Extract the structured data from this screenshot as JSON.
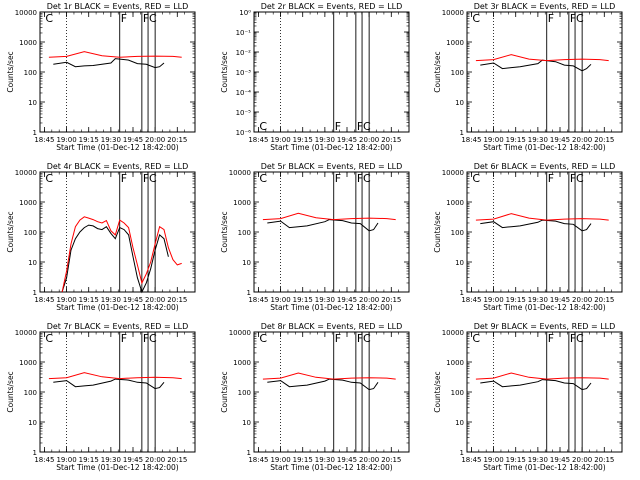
{
  "chart_data": [
    {
      "title": "Det 1r BLACK = Events, RED = LLD",
      "type": "line",
      "ylabel": "Counts/sec",
      "xlabel": "Start Time (01-Dec-12 18:42:00)",
      "xticks": [
        "18:45",
        "19:00",
        "19:15",
        "19:30",
        "19:45",
        "20:00",
        "20:15"
      ],
      "yscale": "log",
      "ylim": [
        1,
        10000
      ],
      "yticks": [
        "1",
        "10",
        "100",
        "1000",
        "10000"
      ],
      "flags": [
        "C",
        "F",
        "F",
        "C"
      ],
      "series": [
        {
          "name": "Events",
          "color": "#000000",
          "x": [
            18.85,
            19.0,
            19.1,
            19.2,
            19.3,
            19.5,
            19.55,
            19.7,
            19.8,
            19.9,
            20.0,
            20.05,
            20.1
          ],
          "y": [
            180,
            210,
            150,
            160,
            165,
            200,
            280,
            250,
            190,
            180,
            140,
            150,
            200
          ]
        },
        {
          "name": "LLD",
          "color": "#ff0000",
          "x": [
            18.8,
            19.0,
            19.2,
            19.4,
            19.6,
            19.8,
            20.0,
            20.2,
            20.3
          ],
          "y": [
            310,
            330,
            480,
            350,
            310,
            330,
            340,
            330,
            310
          ]
        }
      ]
    },
    {
      "title": "Det 2r BLACK = Events, RED = LLD",
      "type": "line",
      "ylabel": "Counts/sec",
      "xlabel": "Start Time (01-Dec-12 18:42:00)",
      "xticks": [
        "18:45",
        "19:00",
        "19:15",
        "19:30",
        "19:45",
        "20:00",
        "20:15"
      ],
      "yscale": "log",
      "ylim": [
        1e-06,
        1
      ],
      "yticks": [
        "10⁻⁶",
        "10⁻⁵",
        "10⁻⁴",
        "10⁻³",
        "10⁻²",
        "10⁻¹",
        "10⁰"
      ],
      "flags": [
        "C",
        "F",
        "F",
        "C"
      ],
      "series": []
    },
    {
      "title": "Det 3r BLACK = Events, RED = LLD",
      "type": "line",
      "ylabel": "Counts/sec",
      "xlabel": "Start Time (01-Dec-12 18:42:00)",
      "xticks": [
        "18:45",
        "19:00",
        "19:15",
        "19:30",
        "19:45",
        "20:00",
        "20:15"
      ],
      "yscale": "log",
      "ylim": [
        1,
        10000
      ],
      "yticks": [
        "1",
        "10",
        "100",
        "1000",
        "10000"
      ],
      "flags": [
        "C",
        "F",
        "F",
        "C"
      ],
      "series": [
        {
          "name": "Events",
          "color": "#000000",
          "x": [
            18.85,
            19.0,
            19.1,
            19.2,
            19.3,
            19.5,
            19.55,
            19.7,
            19.8,
            19.9,
            20.0,
            20.05,
            20.1
          ],
          "y": [
            170,
            200,
            130,
            140,
            150,
            190,
            250,
            220,
            170,
            160,
            110,
            130,
            180
          ]
        },
        {
          "name": "LLD",
          "color": "#ff0000",
          "x": [
            18.8,
            19.0,
            19.2,
            19.4,
            19.6,
            19.8,
            20.0,
            20.2,
            20.3
          ],
          "y": [
            240,
            260,
            380,
            270,
            240,
            260,
            270,
            260,
            240
          ]
        }
      ]
    },
    {
      "title": "Det 4r BLACK = Events, RED = LLD",
      "type": "line",
      "ylabel": "Counts/sec",
      "xlabel": "Start Time (01-Dec-12 18:42:00)",
      "xticks": [
        "18:45",
        "19:00",
        "19:15",
        "19:30",
        "19:45",
        "20:00",
        "20:15"
      ],
      "yscale": "log",
      "ylim": [
        1,
        10000
      ],
      "yticks": [
        "1",
        "10",
        "100",
        "1000",
        "10000"
      ],
      "flags": [
        "C",
        "F",
        "F",
        "C"
      ],
      "series": [
        {
          "name": "Events",
          "color": "#000000",
          "x": [
            18.95,
            19.0,
            19.05,
            19.1,
            19.15,
            19.2,
            19.25,
            19.3,
            19.35,
            19.4,
            19.45,
            19.5,
            19.55,
            19.6,
            19.65,
            19.7,
            19.75,
            19.8,
            19.85,
            19.9,
            19.95,
            20.0,
            20.05,
            20.1,
            20.15
          ],
          "y": [
            1,
            3,
            25,
            60,
            100,
            140,
            170,
            160,
            130,
            120,
            150,
            90,
            60,
            140,
            120,
            80,
            15,
            3,
            1,
            2,
            6,
            25,
            80,
            60,
            15
          ]
        },
        {
          "name": "LLD",
          "color": "#ff0000",
          "x": [
            18.95,
            19.0,
            19.05,
            19.1,
            19.15,
            19.2,
            19.25,
            19.3,
            19.35,
            19.4,
            19.45,
            19.5,
            19.55,
            19.6,
            19.65,
            19.7,
            19.75,
            19.8,
            19.85,
            19.9,
            19.95,
            20.0,
            20.05,
            20.1,
            20.15,
            20.2,
            20.25,
            20.3
          ],
          "y": [
            1,
            5,
            40,
            150,
            250,
            320,
            290,
            260,
            220,
            200,
            240,
            110,
            80,
            250,
            200,
            140,
            30,
            8,
            2,
            4,
            10,
            40,
            150,
            120,
            30,
            12,
            8,
            9
          ]
        }
      ]
    },
    {
      "title": "Det 5r BLACK = Events, RED = LLD",
      "type": "line",
      "ylabel": "Counts/sec",
      "xlabel": "Start Time (01-Dec-12 18:42:00)",
      "xticks": [
        "18:45",
        "19:00",
        "19:15",
        "19:30",
        "19:45",
        "20:00",
        "20:15"
      ],
      "yscale": "log",
      "ylim": [
        1,
        10000
      ],
      "yticks": [
        "1",
        "10",
        "100",
        "1000",
        "10000"
      ],
      "flags": [
        "C",
        "F",
        "F",
        "C"
      ],
      "series": [
        {
          "name": "Events",
          "color": "#000000",
          "x": [
            18.85,
            19.0,
            19.1,
            19.2,
            19.3,
            19.5,
            19.55,
            19.7,
            19.8,
            19.9,
            20.0,
            20.05,
            20.1
          ],
          "y": [
            200,
            230,
            140,
            150,
            160,
            220,
            260,
            240,
            200,
            190,
            110,
            120,
            200
          ]
        },
        {
          "name": "LLD",
          "color": "#ff0000",
          "x": [
            18.8,
            19.0,
            19.2,
            19.4,
            19.6,
            19.8,
            20.0,
            20.2,
            20.3
          ],
          "y": [
            260,
            280,
            420,
            300,
            260,
            280,
            290,
            280,
            260
          ]
        }
      ]
    },
    {
      "title": "Det 6r BLACK = Events, RED = LLD",
      "type": "line",
      "ylabel": "Counts/sec",
      "xlabel": "Start Time (01-Dec-12 18:42:00)",
      "xticks": [
        "18:45",
        "19:00",
        "19:15",
        "19:30",
        "19:45",
        "20:00",
        "20:15"
      ],
      "yscale": "log",
      "ylim": [
        1,
        10000
      ],
      "yticks": [
        "1",
        "10",
        "100",
        "1000",
        "10000"
      ],
      "flags": [
        "C",
        "F",
        "F",
        "C"
      ],
      "series": [
        {
          "name": "Events",
          "color": "#000000",
          "x": [
            18.85,
            19.0,
            19.1,
            19.2,
            19.3,
            19.5,
            19.55,
            19.7,
            19.8,
            19.9,
            20.0,
            20.05,
            20.1
          ],
          "y": [
            190,
            220,
            140,
            150,
            160,
            210,
            250,
            230,
            190,
            180,
            110,
            120,
            190
          ]
        },
        {
          "name": "LLD",
          "color": "#ff0000",
          "x": [
            18.8,
            19.0,
            19.2,
            19.4,
            19.6,
            19.8,
            20.0,
            20.2,
            20.3
          ],
          "y": [
            250,
            270,
            410,
            290,
            250,
            270,
            280,
            270,
            250
          ]
        }
      ]
    },
    {
      "title": "Det 7r BLACK = Events, RED = LLD",
      "type": "line",
      "ylabel": "Counts/sec",
      "xlabel": "Start Time (01-Dec-12 18:42:00)",
      "xticks": [
        "18:45",
        "19:00",
        "19:15",
        "19:30",
        "19:45",
        "20:00",
        "20:15"
      ],
      "yscale": "log",
      "ylim": [
        1,
        10000
      ],
      "yticks": [
        "1",
        "10",
        "100",
        "1000",
        "10000"
      ],
      "flags": [
        "C",
        "F",
        "F",
        "C"
      ],
      "series": [
        {
          "name": "Events",
          "color": "#000000",
          "x": [
            18.85,
            19.0,
            19.1,
            19.2,
            19.3,
            19.5,
            19.55,
            19.7,
            19.8,
            19.9,
            20.0,
            20.05,
            20.1
          ],
          "y": [
            210,
            240,
            150,
            160,
            170,
            230,
            270,
            250,
            210,
            200,
            130,
            140,
            210
          ]
        },
        {
          "name": "LLD",
          "color": "#ff0000",
          "x": [
            18.8,
            19.0,
            19.2,
            19.4,
            19.6,
            19.8,
            20.0,
            20.2,
            20.3
          ],
          "y": [
            280,
            300,
            440,
            320,
            280,
            300,
            310,
            300,
            280
          ]
        }
      ]
    },
    {
      "title": "Det 8r BLACK = Events, RED = LLD",
      "type": "line",
      "ylabel": "Counts/sec",
      "xlabel": "Start Time (01-Dec-12 18:42:00)",
      "xticks": [
        "18:45",
        "19:00",
        "19:15",
        "19:30",
        "19:45",
        "20:00",
        "20:15"
      ],
      "yscale": "log",
      "ylim": [
        1,
        10000
      ],
      "yticks": [
        "1",
        "10",
        "100",
        "1000",
        "10000"
      ],
      "flags": [
        "C",
        "F",
        "F",
        "C"
      ],
      "series": [
        {
          "name": "Events",
          "color": "#000000",
          "x": [
            18.85,
            19.0,
            19.1,
            19.2,
            19.3,
            19.5,
            19.55,
            19.7,
            19.8,
            19.9,
            20.0,
            20.05,
            20.1
          ],
          "y": [
            210,
            240,
            150,
            160,
            170,
            230,
            270,
            250,
            210,
            200,
            120,
            130,
            210
          ]
        },
        {
          "name": "LLD",
          "color": "#ff0000",
          "x": [
            18.8,
            19.0,
            19.2,
            19.4,
            19.6,
            19.8,
            20.0,
            20.2,
            20.3
          ],
          "y": [
            270,
            290,
            430,
            310,
            270,
            290,
            300,
            290,
            270
          ]
        }
      ]
    },
    {
      "title": "Det 9r BLACK = Events, RED = LLD",
      "type": "line",
      "ylabel": "Counts/sec",
      "xlabel": "Start Time (01-Dec-12 18:42:00)",
      "xticks": [
        "18:45",
        "19:00",
        "19:15",
        "19:30",
        "19:45",
        "20:00",
        "20:15"
      ],
      "yscale": "log",
      "ylim": [
        1,
        10000
      ],
      "yticks": [
        "1",
        "10",
        "100",
        "1000",
        "10000"
      ],
      "flags": [
        "C",
        "F",
        "F",
        "C"
      ],
      "series": [
        {
          "name": "Events",
          "color": "#000000",
          "x": [
            18.85,
            19.0,
            19.1,
            19.2,
            19.3,
            19.5,
            19.55,
            19.7,
            19.8,
            19.9,
            20.0,
            20.05,
            20.1
          ],
          "y": [
            200,
            230,
            150,
            160,
            170,
            220,
            260,
            240,
            200,
            190,
            120,
            130,
            200
          ]
        },
        {
          "name": "LLD",
          "color": "#ff0000",
          "x": [
            18.8,
            19.0,
            19.2,
            19.4,
            19.6,
            19.8,
            20.0,
            20.2,
            20.3
          ],
          "y": [
            270,
            290,
            430,
            310,
            270,
            290,
            300,
            290,
            270
          ]
        }
      ]
    }
  ]
}
